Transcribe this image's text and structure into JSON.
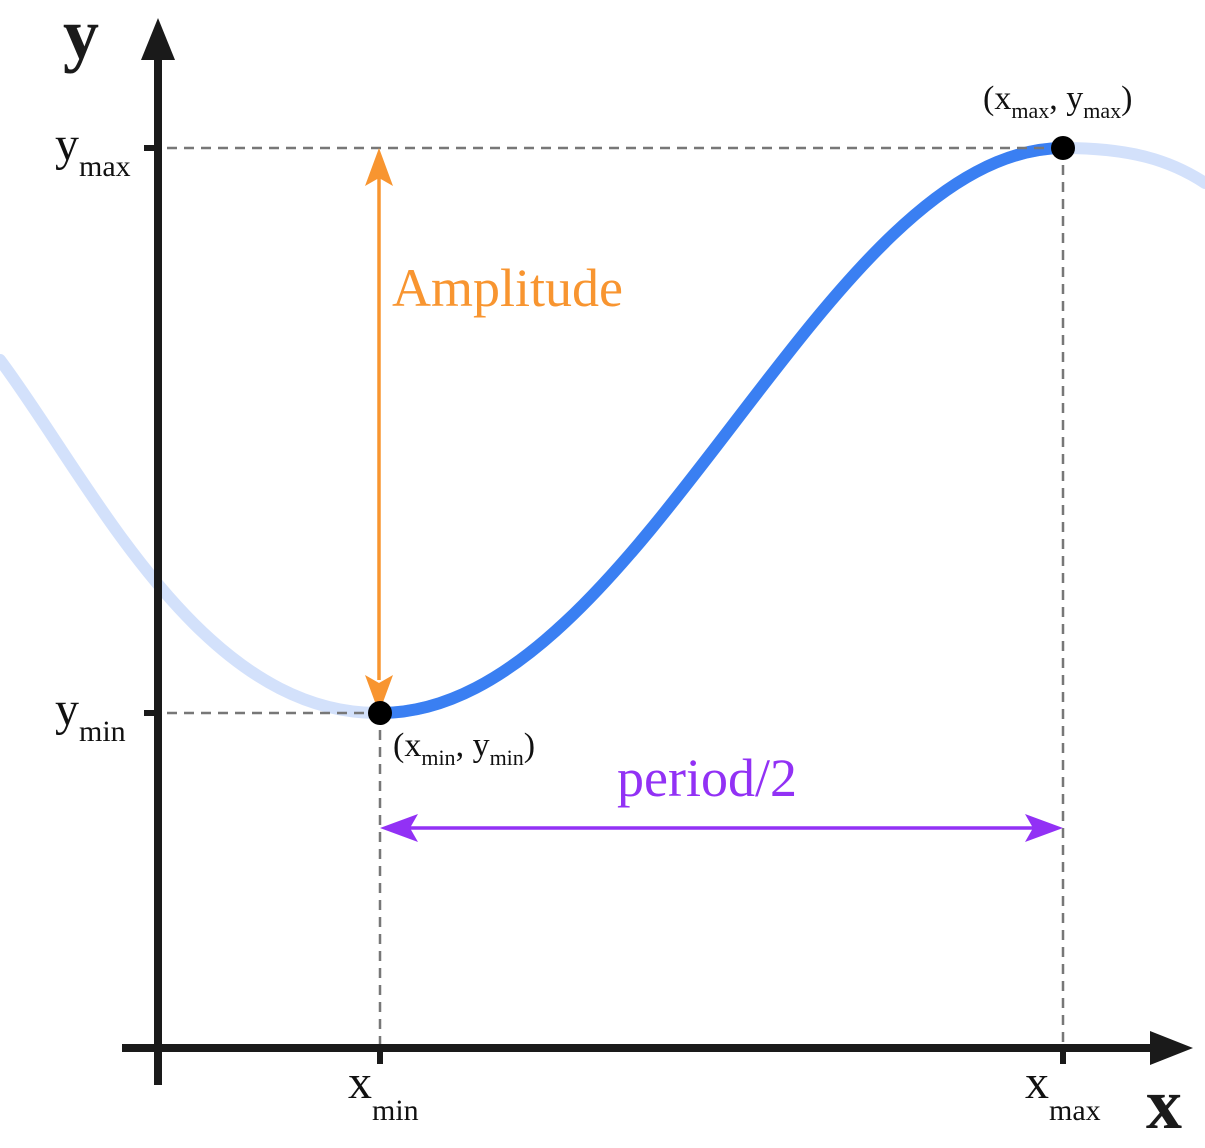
{
  "axes": {
    "x_title": "x",
    "y_title": "y"
  },
  "ticks": {
    "y_max": {
      "main": "y",
      "sub": "max"
    },
    "y_min": {
      "main": "y",
      "sub": "min"
    },
    "x_min": {
      "main": "x",
      "sub": "min"
    },
    "x_max": {
      "main": "x",
      "sub": "max"
    }
  },
  "points": {
    "max": {
      "open": "(x",
      "sub1": "max",
      "mid": ", y",
      "sub2": "max",
      "close": ")"
    },
    "min": {
      "open": "(x",
      "sub1": "min",
      "mid": ", y",
      "sub2": "min",
      "close": ")"
    }
  },
  "annotations": {
    "amplitude": "Amplitude",
    "half_period": "period/2"
  },
  "colors": {
    "axis": "#1a1a1a",
    "curve": "#3a7ff2",
    "curve_faded": "#d3e1fb",
    "guide": "#777777",
    "amplitude": "#f89530",
    "period": "#9231f5",
    "point": "#000000"
  }
}
